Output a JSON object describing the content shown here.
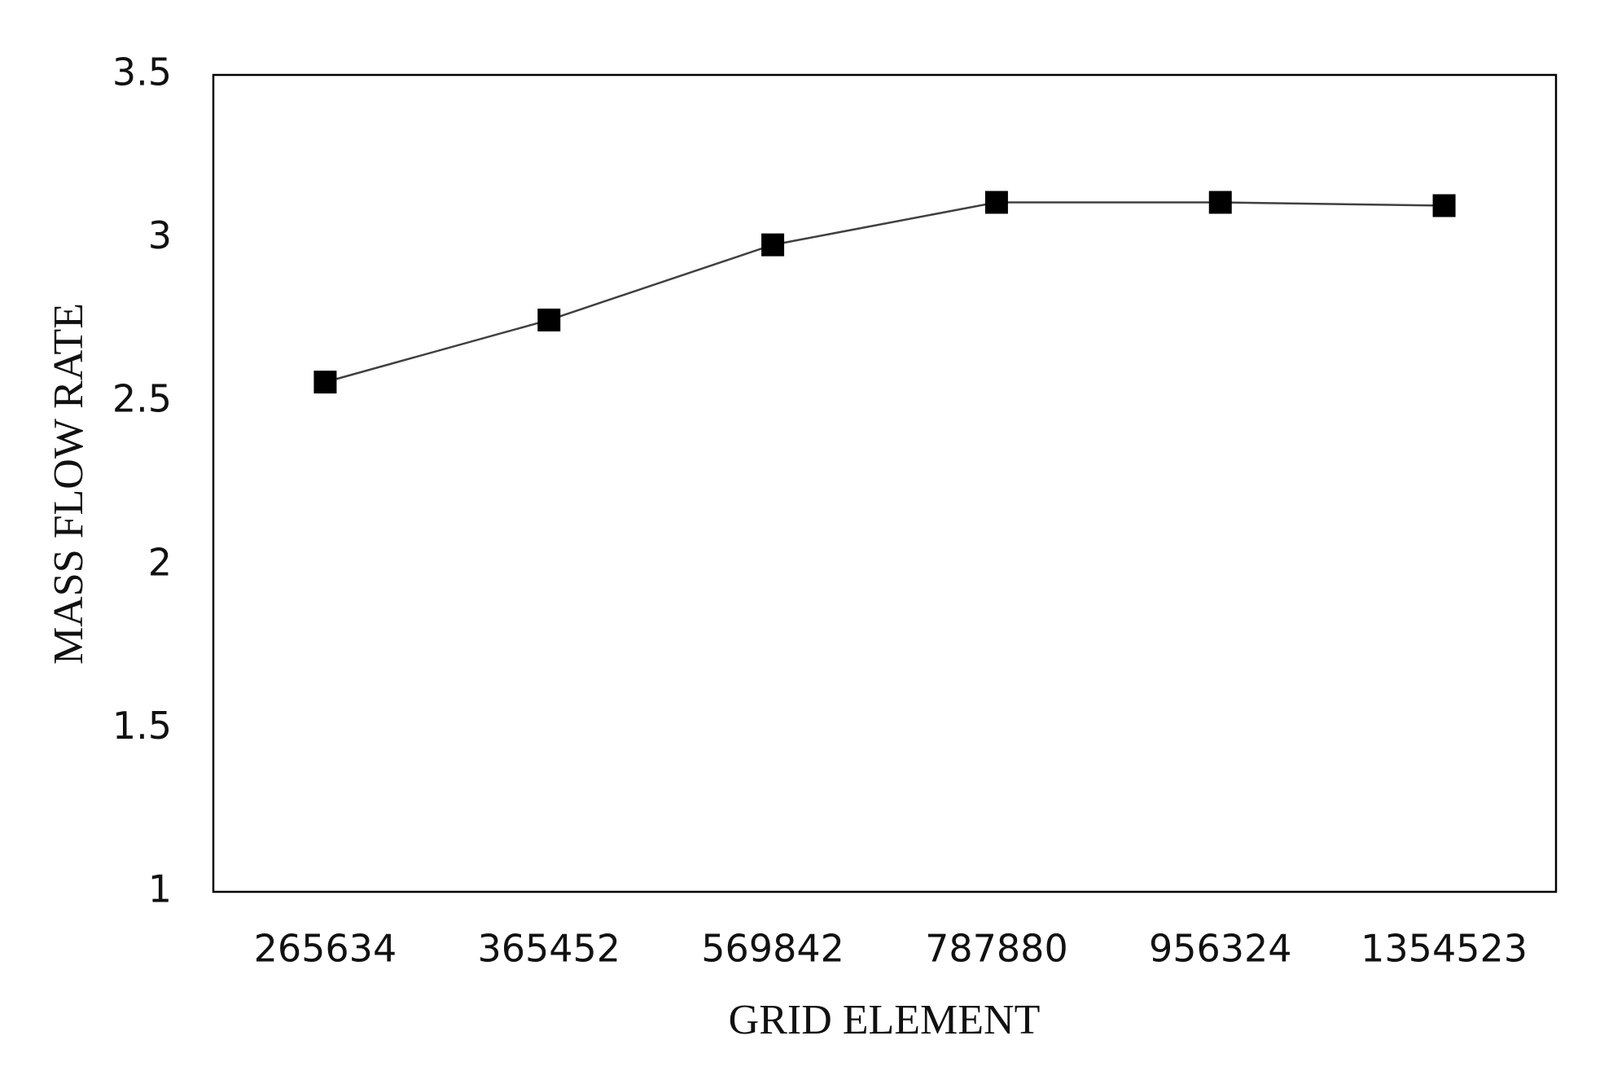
{
  "chart_data": {
    "type": "line",
    "x_label": "GRID ELEMENT",
    "y_label": "MASS FLOW RATE",
    "categories": [
      "265634",
      "365452",
      "569842",
      "787880",
      "956324",
      "1354523"
    ],
    "values": [
      2.56,
      2.75,
      2.98,
      3.11,
      3.11,
      3.1
    ],
    "color": "#000000",
    "line_color": "#404040",
    "marker": "square",
    "ylim": [
      1,
      3.5
    ],
    "yticks": [
      1,
      1.5,
      2,
      2.5,
      3,
      3.5
    ],
    "grid": false
  }
}
